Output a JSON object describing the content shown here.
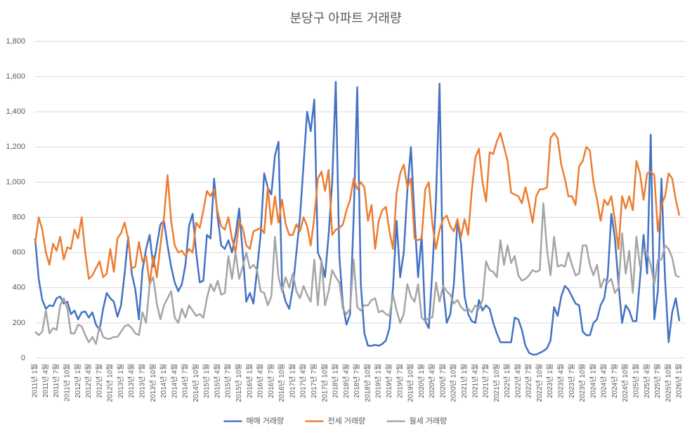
{
  "chart_data": {
    "type": "line",
    "title": "분당구 아파트 거래량",
    "categories": [
      "2011년 1월",
      null,
      null,
      "2011년 4월",
      null,
      null,
      "2011년 7월",
      null,
      null,
      "2011년 10월",
      null,
      null,
      "2012년 1월",
      null,
      null,
      "2012년 4월",
      null,
      null,
      "2012년 7월",
      null,
      null,
      "2012년 10월",
      null,
      null,
      "2013년 1월",
      null,
      null,
      "2013년 4월",
      null,
      null,
      "2013년 7월",
      null,
      null,
      "2013년 10월",
      null,
      null,
      "2014년 1월",
      null,
      null,
      "2014년 4월",
      null,
      null,
      "2014년 7월",
      null,
      null,
      "2014년 10월",
      null,
      null,
      "2015년 1월",
      null,
      null,
      "2015년 4월",
      null,
      null,
      "2015년 7월",
      null,
      null,
      "2015년 10월",
      null,
      null,
      "2016년 1월",
      null,
      null,
      "2016년 4월",
      null,
      null,
      "2016년 7월",
      null,
      null,
      "2016년 10월",
      null,
      null,
      "2017년 1월",
      null,
      null,
      "2017년 4월",
      null,
      null,
      "2017년 7월",
      null,
      null,
      "2017년 10월",
      null,
      null,
      "2018년 1월",
      null,
      null,
      "2018년 4월",
      null,
      null,
      "2018년 7월",
      null,
      null,
      "2018년 10월",
      null,
      null,
      "2019년 1월",
      null,
      null,
      "2019년 4월",
      null,
      null,
      "2019년 7월",
      null,
      null,
      "2019년 10월",
      null,
      null,
      "2020년 1월",
      null,
      null,
      "2020년 4월",
      null,
      null,
      "2020년 7월",
      null,
      null,
      "2020년 10월",
      null,
      null,
      "2021년 1월",
      null,
      null,
      "2021년 4월",
      null,
      null,
      "2021년 7월",
      null,
      null,
      "2021년 10월",
      null,
      null,
      "2022년 1월",
      null,
      null,
      "2022년 4월",
      null,
      null,
      "2022년 7월",
      null,
      null,
      "2022년 10월",
      null,
      null,
      "2023년 1월",
      null,
      null,
      "2023년 4월",
      null,
      null,
      "2023년 7월",
      null,
      null,
      "2023년 10월",
      null,
      null,
      "2024년 1월",
      null,
      null,
      "2024년 4월",
      null,
      null,
      "2024년 7월",
      null,
      null,
      "2024년 10월",
      null,
      null,
      "2025년 1월",
      null,
      null,
      "2025년 4월",
      null,
      null,
      "2025년 7월",
      null,
      null,
      "2025년 10월",
      null,
      null,
      "2026년 1월"
    ],
    "series": [
      {
        "name": "매매 거래량",
        "color": "#4472c4",
        "values": [
          680,
          450,
          330,
          280,
          300,
          295,
          340,
          350,
          310,
          320,
          250,
          270,
          220,
          260,
          265,
          230,
          260,
          190,
          160,
          280,
          370,
          340,
          320,
          235,
          300,
          480,
          690,
          480,
          390,
          220,
          500,
          620,
          700,
          520,
          640,
          760,
          780,
          640,
          520,
          430,
          380,
          420,
          530,
          750,
          820,
          600,
          430,
          440,
          700,
          680,
          1020,
          800,
          640,
          620,
          670,
          600,
          700,
          850,
          600,
          320,
          370,
          310,
          500,
          700,
          1050,
          970,
          930,
          1150,
          1230,
          400,
          320,
          280,
          400,
          600,
          800,
          1100,
          1400,
          1290,
          1470,
          600,
          550,
          460,
          700,
          1000,
          1570,
          580,
          300,
          190,
          250,
          800,
          1540,
          420,
          140,
          70,
          70,
          75,
          70,
          80,
          100,
          170,
          400,
          780,
          460,
          600,
          950,
          1200,
          800,
          460,
          700,
          210,
          170,
          500,
          900,
          1560,
          400,
          200,
          250,
          420,
          780,
          650,
          350,
          250,
          210,
          200,
          330,
          270,
          300,
          280,
          200,
          140,
          90,
          90,
          90,
          90,
          230,
          220,
          160,
          70,
          30,
          20,
          20,
          30,
          40,
          55,
          100,
          290,
          240,
          350,
          410,
          390,
          350,
          310,
          300,
          150,
          130,
          130,
          200,
          220,
          300,
          340,
          470,
          820,
          680,
          420,
          200,
          300,
          270,
          210,
          210,
          450,
          700,
          480,
          1270,
          220,
          380,
          1020,
          450,
          90,
          260,
          340,
          210
        ]
      },
      {
        "name": "전세 거래량",
        "color": "#ed7d31",
        "values": [
          650,
          800,
          730,
          600,
          530,
          650,
          610,
          690,
          560,
          630,
          620,
          730,
          680,
          800,
          600,
          450,
          470,
          510,
          550,
          460,
          480,
          620,
          490,
          680,
          710,
          770,
          680,
          510,
          520,
          660,
          550,
          580,
          420,
          580,
          460,
          640,
          800,
          1040,
          780,
          640,
          600,
          610,
          580,
          620,
          600,
          770,
          740,
          840,
          950,
          920,
          960,
          830,
          750,
          730,
          800,
          680,
          600,
          780,
          740,
          640,
          620,
          720,
          730,
          740,
          710,
          970,
          760,
          920,
          770,
          900,
          760,
          700,
          700,
          760,
          720,
          800,
          750,
          640,
          800,
          1020,
          1060,
          950,
          1070,
          700,
          730,
          740,
          760,
          840,
          900,
          1020,
          960,
          1000,
          970,
          780,
          870,
          620,
          780,
          840,
          860,
          720,
          620,
          940,
          1050,
          1100,
          970,
          1020,
          680,
          670,
          680,
          960,
          1000,
          760,
          620,
          730,
          790,
          810,
          750,
          720,
          790,
          690,
          790,
          700,
          950,
          1140,
          1190,
          1000,
          890,
          1170,
          1160,
          1230,
          1280,
          1200,
          1120,
          940,
          930,
          920,
          880,
          970,
          880,
          770,
          920,
          960,
          960,
          970,
          1250,
          1280,
          1250,
          1100,
          1020,
          920,
          920,
          870,
          1090,
          1120,
          1200,
          1180,
          1000,
          900,
          780,
          900,
          870,
          920,
          780,
          620,
          920,
          850,
          920,
          840,
          1120,
          1050,
          900,
          1050,
          1060,
          1040,
          720,
          870,
          920,
          1050,
          1020,
          900,
          810
        ]
      },
      {
        "name": "월세 거래량",
        "color": "#a5a5a5",
        "values": [
          150,
          130,
          150,
          270,
          140,
          170,
          160,
          300,
          340,
          280,
          140,
          140,
          190,
          180,
          130,
          90,
          120,
          80,
          180,
          120,
          110,
          110,
          120,
          120,
          150,
          180,
          190,
          170,
          140,
          130,
          260,
          200,
          420,
          460,
          310,
          220,
          300,
          340,
          380,
          230,
          200,
          280,
          230,
          300,
          270,
          240,
          250,
          230,
          340,
          420,
          380,
          440,
          360,
          370,
          580,
          450,
          600,
          450,
          520,
          600,
          510,
          530,
          500,
          380,
          370,
          300,
          350,
          690,
          460,
          380,
          460,
          400,
          480,
          380,
          340,
          410,
          360,
          320,
          560,
          300,
          560,
          300,
          380,
          500,
          460,
          430,
          280,
          250,
          280,
          560,
          290,
          270,
          300,
          300,
          330,
          340,
          260,
          270,
          250,
          240,
          360,
          270,
          200,
          250,
          420,
          350,
          320,
          420,
          230,
          210,
          230,
          230,
          430,
          320,
          410,
          380,
          360,
          310,
          330,
          290,
          270,
          280,
          260,
          300,
          280,
          330,
          550,
          500,
          490,
          460,
          670,
          530,
          640,
          540,
          580,
          470,
          440,
          450,
          470,
          500,
          490,
          500,
          880,
          620,
          470,
          690,
          520,
          530,
          520,
          600,
          530,
          470,
          480,
          640,
          640,
          530,
          470,
          530,
          400,
          450,
          430,
          450,
          370,
          400,
          710,
          480,
          610,
          370,
          690,
          520,
          620,
          600,
          530,
          420,
          560,
          560,
          640,
          620,
          570,
          470,
          460
        ]
      }
    ],
    "ylim": [
      0,
      1800
    ],
    "yticks": [
      0,
      200,
      400,
      600,
      800,
      {
        "value": 1000,
        "label": "1,000"
      },
      {
        "value": 1200,
        "label": "1,200"
      },
      {
        "value": 1400,
        "label": "1,400"
      },
      {
        "value": 1600,
        "label": "1,600"
      },
      {
        "value": 1800,
        "label": "1,800"
      }
    ],
    "grid": true,
    "legend": "bottom"
  }
}
